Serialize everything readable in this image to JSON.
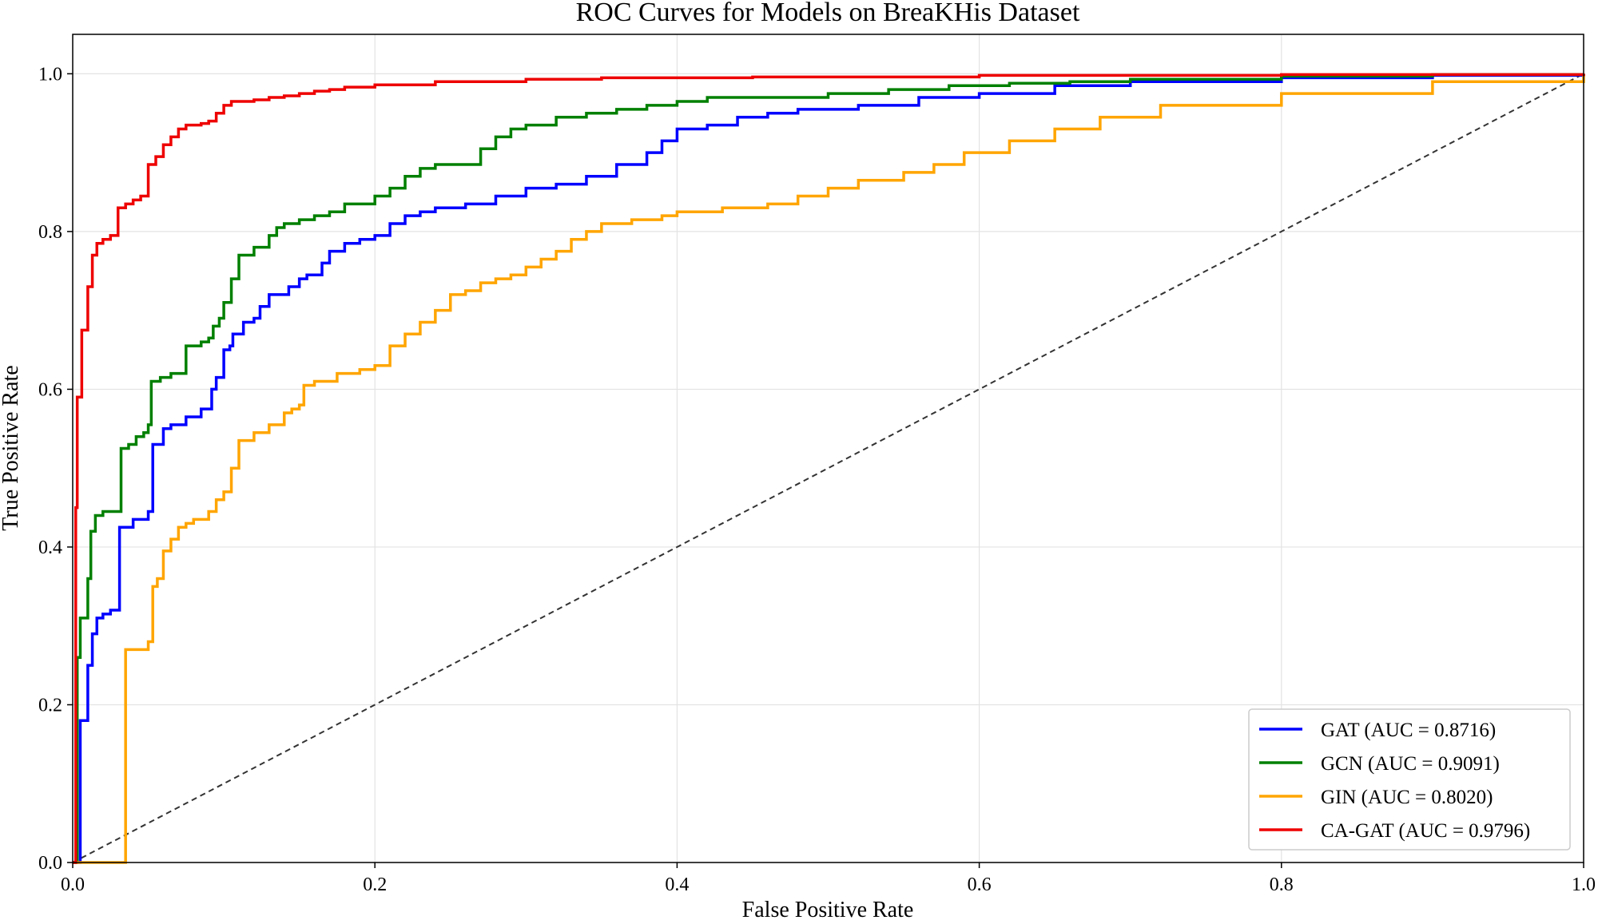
{
  "chart_data": {
    "type": "line",
    "title": "ROC Curves for Models on BreaKHis Dataset",
    "xlabel": "False Positive Rate",
    "ylabel": "True Positive Rate",
    "xlim": [
      0,
      1
    ],
    "ylim": [
      0,
      1.05
    ],
    "xticks": [
      "0.0",
      "0.2",
      "0.4",
      "0.6",
      "0.8",
      "1.0"
    ],
    "yticks": [
      "0.0",
      "0.2",
      "0.4",
      "0.6",
      "0.8",
      "1.0"
    ],
    "grid": true,
    "legend_position": "lower-right",
    "series": [
      {
        "name": "GAT (AUC = 0.8716)",
        "color": "#0000ff",
        "x": [
          0,
          0.005,
          0.01,
          0.013,
          0.016,
          0.02,
          0.025,
          0.03,
          0.031,
          0.04,
          0.05,
          0.052,
          0.053,
          0.06,
          0.065,
          0.075,
          0.085,
          0.092,
          0.095,
          0.1,
          0.104,
          0.106,
          0.113,
          0.12,
          0.124,
          0.13,
          0.135,
          0.143,
          0.15,
          0.155,
          0.16,
          0.165,
          0.17,
          0.18,
          0.19,
          0.2,
          0.21,
          0.22,
          0.23,
          0.24,
          0.26,
          0.28,
          0.3,
          0.32,
          0.34,
          0.36,
          0.38,
          0.39,
          0.4,
          0.42,
          0.44,
          0.46,
          0.48,
          0.52,
          0.56,
          0.6,
          0.65,
          0.7,
          0.8,
          0.9,
          1.0
        ],
        "y": [
          0,
          0.18,
          0.25,
          0.29,
          0.31,
          0.315,
          0.32,
          0.32,
          0.425,
          0.435,
          0.445,
          0.445,
          0.53,
          0.55,
          0.555,
          0.565,
          0.575,
          0.6,
          0.615,
          0.65,
          0.655,
          0.67,
          0.685,
          0.69,
          0.705,
          0.72,
          0.72,
          0.73,
          0.74,
          0.745,
          0.745,
          0.76,
          0.775,
          0.785,
          0.79,
          0.795,
          0.81,
          0.82,
          0.825,
          0.83,
          0.835,
          0.845,
          0.855,
          0.86,
          0.87,
          0.885,
          0.9,
          0.915,
          0.93,
          0.935,
          0.945,
          0.95,
          0.955,
          0.96,
          0.97,
          0.975,
          0.985,
          0.99,
          0.995,
          0.998,
          1.0
        ]
      },
      {
        "name": "GCN (AUC = 0.9091)",
        "color": "#008000",
        "x": [
          0,
          0.003,
          0.005,
          0.01,
          0.012,
          0.015,
          0.02,
          0.03,
          0.032,
          0.037,
          0.042,
          0.047,
          0.05,
          0.052,
          0.058,
          0.065,
          0.07,
          0.075,
          0.085,
          0.09,
          0.093,
          0.097,
          0.1,
          0.105,
          0.11,
          0.12,
          0.13,
          0.135,
          0.14,
          0.15,
          0.16,
          0.17,
          0.18,
          0.2,
          0.21,
          0.22,
          0.23,
          0.24,
          0.25,
          0.27,
          0.28,
          0.29,
          0.3,
          0.32,
          0.34,
          0.36,
          0.38,
          0.4,
          0.42,
          0.46,
          0.5,
          0.54,
          0.58,
          0.62,
          0.66,
          0.7,
          0.8,
          0.9,
          1.0
        ],
        "y": [
          0,
          0.26,
          0.31,
          0.36,
          0.42,
          0.44,
          0.445,
          0.445,
          0.525,
          0.53,
          0.54,
          0.545,
          0.555,
          0.61,
          0.615,
          0.62,
          0.62,
          0.655,
          0.66,
          0.665,
          0.68,
          0.69,
          0.71,
          0.74,
          0.77,
          0.78,
          0.795,
          0.805,
          0.81,
          0.815,
          0.82,
          0.825,
          0.835,
          0.845,
          0.855,
          0.87,
          0.88,
          0.885,
          0.885,
          0.905,
          0.92,
          0.93,
          0.935,
          0.945,
          0.95,
          0.955,
          0.96,
          0.965,
          0.97,
          0.97,
          0.975,
          0.98,
          0.985,
          0.988,
          0.99,
          0.993,
          0.997,
          0.999,
          1.0
        ]
      },
      {
        "name": "GIN (AUC = 0.8020)",
        "color": "#ffa500",
        "x": [
          0,
          0.035,
          0.045,
          0.05,
          0.053,
          0.056,
          0.06,
          0.065,
          0.07,
          0.075,
          0.08,
          0.09,
          0.095,
          0.1,
          0.105,
          0.11,
          0.12,
          0.13,
          0.14,
          0.145,
          0.15,
          0.153,
          0.16,
          0.175,
          0.19,
          0.2,
          0.21,
          0.22,
          0.23,
          0.24,
          0.25,
          0.26,
          0.27,
          0.28,
          0.29,
          0.3,
          0.31,
          0.32,
          0.33,
          0.34,
          0.35,
          0.37,
          0.39,
          0.4,
          0.43,
          0.46,
          0.48,
          0.5,
          0.52,
          0.55,
          0.57,
          0.59,
          0.62,
          0.65,
          0.68,
          0.72,
          0.8,
          0.9,
          1.0
        ],
        "y": [
          0,
          0.27,
          0.27,
          0.28,
          0.35,
          0.36,
          0.395,
          0.41,
          0.425,
          0.43,
          0.435,
          0.445,
          0.46,
          0.47,
          0.5,
          0.535,
          0.545,
          0.555,
          0.57,
          0.575,
          0.58,
          0.605,
          0.61,
          0.62,
          0.625,
          0.63,
          0.655,
          0.67,
          0.685,
          0.7,
          0.72,
          0.725,
          0.735,
          0.74,
          0.745,
          0.755,
          0.765,
          0.775,
          0.79,
          0.8,
          0.81,
          0.815,
          0.82,
          0.825,
          0.83,
          0.835,
          0.845,
          0.855,
          0.865,
          0.875,
          0.885,
          0.9,
          0.915,
          0.93,
          0.945,
          0.96,
          0.975,
          0.99,
          1.0
        ]
      },
      {
        "name": "CA-GAT (AUC = 0.9796)",
        "color": "#ee0000",
        "x": [
          0,
          0.002,
          0.003,
          0.006,
          0.01,
          0.013,
          0.016,
          0.02,
          0.025,
          0.03,
          0.035,
          0.04,
          0.045,
          0.05,
          0.055,
          0.06,
          0.065,
          0.07,
          0.075,
          0.08,
          0.085,
          0.09,
          0.095,
          0.1,
          0.105,
          0.11,
          0.12,
          0.13,
          0.14,
          0.15,
          0.16,
          0.17,
          0.18,
          0.2,
          0.24,
          0.3,
          0.35,
          0.45,
          0.6,
          0.8,
          1.0
        ],
        "y": [
          0,
          0.45,
          0.59,
          0.675,
          0.73,
          0.77,
          0.785,
          0.79,
          0.795,
          0.83,
          0.835,
          0.84,
          0.845,
          0.885,
          0.895,
          0.91,
          0.92,
          0.93,
          0.935,
          0.935,
          0.937,
          0.94,
          0.95,
          0.96,
          0.965,
          0.965,
          0.967,
          0.97,
          0.972,
          0.975,
          0.978,
          0.98,
          0.983,
          0.986,
          0.99,
          0.993,
          0.995,
          0.996,
          0.998,
          0.999,
          1.0
        ]
      }
    ],
    "reference_line": {
      "x": [
        0,
        1
      ],
      "y": [
        0,
        1
      ],
      "style": "dashed",
      "color": "#333333"
    }
  }
}
